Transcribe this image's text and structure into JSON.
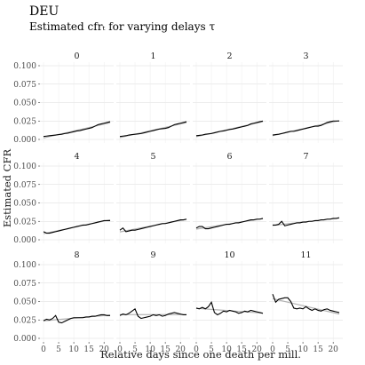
{
  "chart_data": {
    "type": "line",
    "title": "DEU",
    "subtitle": "Estimated cfrₜ for varying delays τ",
    "xlabel": "Relative days since one death per mill.",
    "ylabel": "Estimated CFR",
    "x_ticks": [
      0,
      5,
      10,
      15,
      20
    ],
    "y_ticks": [
      "0.000",
      "0.025",
      "0.050",
      "0.075",
      "0.100"
    ],
    "xlim": [
      0,
      22
    ],
    "ylim": [
      0,
      0.1
    ],
    "grid": true,
    "line_color": "#000000",
    "trend_color": "#b3b3b3",
    "panels": [
      {
        "label": "0",
        "values": [
          0.004,
          0.0045,
          0.005,
          0.0055,
          0.006,
          0.0065,
          0.007,
          0.008,
          0.0085,
          0.0095,
          0.0105,
          0.0115,
          0.012,
          0.013,
          0.014,
          0.015,
          0.016,
          0.018,
          0.02,
          0.021,
          0.022,
          0.023,
          0.024
        ]
      },
      {
        "label": "1",
        "values": [
          0.004,
          0.0045,
          0.005,
          0.006,
          0.0065,
          0.007,
          0.0075,
          0.008,
          0.009,
          0.01,
          0.011,
          0.012,
          0.013,
          0.014,
          0.0145,
          0.015,
          0.016,
          0.018,
          0.02,
          0.021,
          0.022,
          0.023,
          0.024
        ]
      },
      {
        "label": "2",
        "values": [
          0.005,
          0.0055,
          0.006,
          0.007,
          0.0075,
          0.008,
          0.009,
          0.01,
          0.011,
          0.0115,
          0.0125,
          0.0135,
          0.014,
          0.015,
          0.016,
          0.017,
          0.018,
          0.019,
          0.021,
          0.022,
          0.023,
          0.024,
          0.025
        ]
      },
      {
        "label": "3",
        "values": [
          0.006,
          0.0065,
          0.007,
          0.008,
          0.009,
          0.01,
          0.011,
          0.011,
          0.012,
          0.013,
          0.014,
          0.015,
          0.016,
          0.017,
          0.018,
          0.018,
          0.019,
          0.021,
          0.023,
          0.024,
          0.025,
          0.025,
          0.025
        ]
      },
      {
        "label": "4",
        "values": [
          0.011,
          0.009,
          0.009,
          0.01,
          0.011,
          0.012,
          0.013,
          0.014,
          0.015,
          0.016,
          0.017,
          0.018,
          0.019,
          0.02,
          0.02,
          0.021,
          0.022,
          0.023,
          0.024,
          0.025,
          0.026,
          0.026,
          0.026
        ]
      },
      {
        "label": "5",
        "values": [
          0.013,
          0.016,
          0.011,
          0.012,
          0.013,
          0.013,
          0.014,
          0.015,
          0.016,
          0.017,
          0.018,
          0.019,
          0.02,
          0.021,
          0.022,
          0.022,
          0.023,
          0.024,
          0.025,
          0.026,
          0.027,
          0.027,
          0.028
        ]
      },
      {
        "label": "6",
        "values": [
          0.016,
          0.018,
          0.018,
          0.015,
          0.015,
          0.016,
          0.017,
          0.018,
          0.019,
          0.02,
          0.021,
          0.021,
          0.022,
          0.023,
          0.023,
          0.024,
          0.025,
          0.026,
          0.027,
          0.027,
          0.028,
          0.028,
          0.029
        ]
      },
      {
        "label": "7",
        "values": [
          0.02,
          0.02,
          0.021,
          0.025,
          0.019,
          0.02,
          0.021,
          0.022,
          0.023,
          0.023,
          0.024,
          0.024,
          0.025,
          0.025,
          0.026,
          0.026,
          0.027,
          0.027,
          0.028,
          0.028,
          0.029,
          0.029,
          0.03
        ]
      },
      {
        "label": "8",
        "values": [
          0.024,
          0.026,
          0.025,
          0.027,
          0.031,
          0.022,
          0.021,
          0.023,
          0.025,
          0.027,
          0.028,
          0.028,
          0.028,
          0.028,
          0.029,
          0.029,
          0.03,
          0.03,
          0.031,
          0.032,
          0.032,
          0.031,
          0.031
        ]
      },
      {
        "label": "9",
        "values": [
          0.031,
          0.033,
          0.032,
          0.034,
          0.037,
          0.04,
          0.03,
          0.027,
          0.028,
          0.029,
          0.03,
          0.032,
          0.031,
          0.032,
          0.03,
          0.031,
          0.033,
          0.034,
          0.035,
          0.034,
          0.033,
          0.032,
          0.032
        ]
      },
      {
        "label": "10",
        "values": [
          0.041,
          0.04,
          0.042,
          0.04,
          0.043,
          0.049,
          0.035,
          0.032,
          0.034,
          0.037,
          0.036,
          0.038,
          0.037,
          0.036,
          0.034,
          0.035,
          0.037,
          0.036,
          0.038,
          0.037,
          0.036,
          0.035,
          0.034
        ]
      },
      {
        "label": "11",
        "values": [
          0.06,
          0.049,
          0.053,
          0.054,
          0.055,
          0.055,
          0.05,
          0.041,
          0.04,
          0.041,
          0.04,
          0.043,
          0.04,
          0.038,
          0.04,
          0.038,
          0.037,
          0.039,
          0.04,
          0.038,
          0.037,
          0.036,
          0.035
        ]
      }
    ]
  }
}
